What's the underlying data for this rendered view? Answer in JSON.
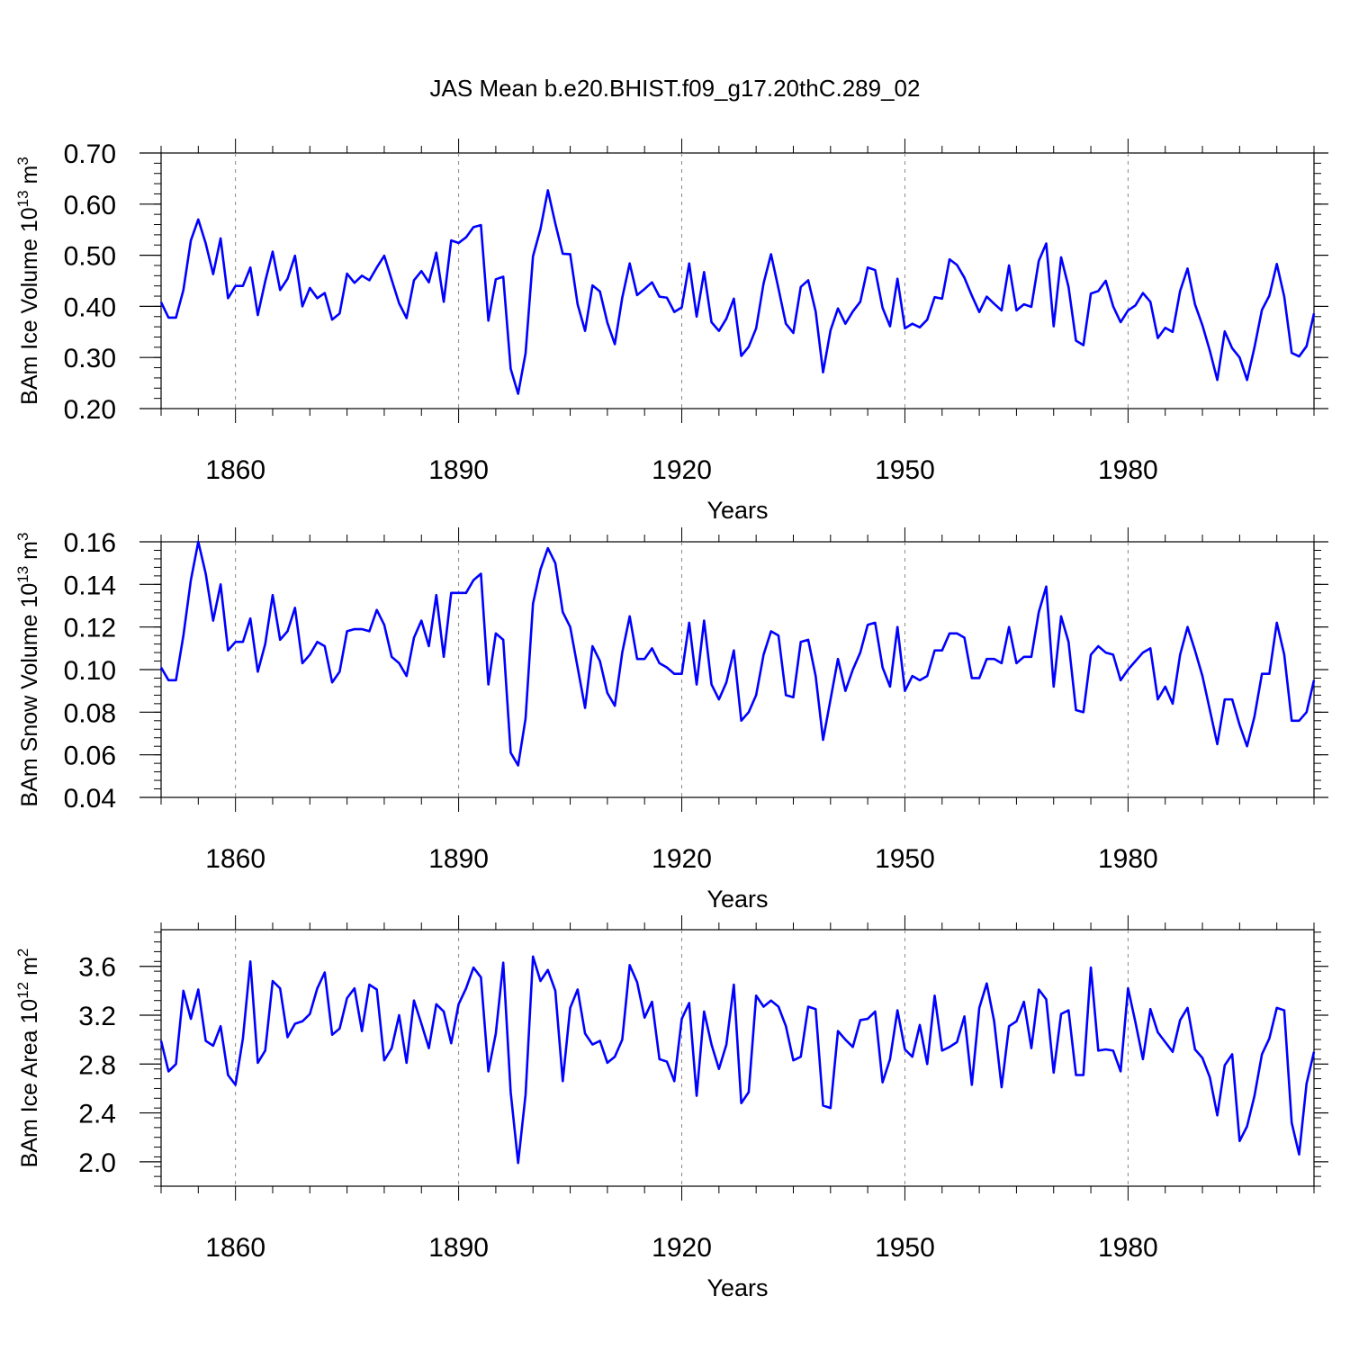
{
  "title": "JAS Mean b.e20.BHIST.f09_g17.20thC.289_02",
  "colors": {
    "line": "#0000ff",
    "axis": "#000000",
    "grid": "#888888"
  },
  "chart_data": [
    {
      "type": "line",
      "title": "",
      "xlabel": "Years",
      "ylabel": {
        "main": "BAm Ice Volume 10",
        "exp": "13",
        "unit": " m",
        "unit_exp": "3"
      },
      "x_start": 1850,
      "xlim": [
        1850,
        2005
      ],
      "ylim": [
        0.2,
        0.7
      ],
      "x_ticks": [
        "1860",
        "1890",
        "1920",
        "1950",
        "1980"
      ],
      "y_ticks": [
        "0.20",
        "0.30",
        "0.40",
        "0.50",
        "0.60",
        "0.70"
      ],
      "series": [
        {
          "name": "BAm Ice Volume",
          "values": [
            0.408,
            0.378,
            0.378,
            0.432,
            0.529,
            0.57,
            0.523,
            0.463,
            0.533,
            0.416,
            0.44,
            0.44,
            0.476,
            0.383,
            0.449,
            0.507,
            0.432,
            0.454,
            0.499,
            0.4,
            0.436,
            0.416,
            0.426,
            0.374,
            0.386,
            0.464,
            0.446,
            0.46,
            0.451,
            0.476,
            0.499,
            0.452,
            0.406,
            0.377,
            0.451,
            0.469,
            0.447,
            0.505,
            0.409,
            0.529,
            0.524,
            0.535,
            0.555,
            0.559,
            0.372,
            0.453,
            0.458,
            0.278,
            0.229,
            0.308,
            0.498,
            0.551,
            0.627,
            0.562,
            0.503,
            0.502,
            0.404,
            0.352,
            0.441,
            0.429,
            0.368,
            0.326,
            0.417,
            0.484,
            0.422,
            0.434,
            0.447,
            0.419,
            0.417,
            0.389,
            0.398,
            0.484,
            0.38,
            0.467,
            0.369,
            0.352,
            0.376,
            0.415,
            0.303,
            0.321,
            0.357,
            0.445,
            0.502,
            0.435,
            0.366,
            0.348,
            0.438,
            0.451,
            0.39,
            0.271,
            0.353,
            0.396,
            0.366,
            0.39,
            0.409,
            0.476,
            0.471,
            0.397,
            0.361,
            0.454,
            0.357,
            0.366,
            0.359,
            0.374,
            0.418,
            0.415,
            0.492,
            0.481,
            0.456,
            0.421,
            0.389,
            0.419,
            0.405,
            0.392,
            0.48,
            0.392,
            0.404,
            0.399,
            0.489,
            0.523,
            0.361,
            0.496,
            0.438,
            0.333,
            0.324,
            0.425,
            0.43,
            0.45,
            0.4,
            0.369,
            0.392,
            0.402,
            0.426,
            0.409,
            0.338,
            0.358,
            0.35,
            0.43,
            0.474,
            0.404,
            0.363,
            0.313,
            0.256,
            0.351,
            0.318,
            0.3,
            0.256,
            0.32,
            0.393,
            0.421,
            0.483,
            0.419,
            0.309,
            0.302,
            0.322,
            0.386
          ]
        }
      ]
    },
    {
      "type": "line",
      "title": "",
      "xlabel": "Years",
      "ylabel": {
        "main": "BAm Snow Volume 10",
        "exp": "13",
        "unit": " m",
        "unit_exp": "3"
      },
      "x_start": 1850,
      "xlim": [
        1850,
        2005
      ],
      "ylim": [
        0.04,
        0.16
      ],
      "x_ticks": [
        "1860",
        "1890",
        "1920",
        "1950",
        "1980"
      ],
      "y_ticks": [
        "0.04",
        "0.06",
        "0.08",
        "0.10",
        "0.12",
        "0.14",
        "0.16"
      ],
      "series": [
        {
          "name": "BAm Snow Volume",
          "values": [
            0.101,
            0.095,
            0.095,
            0.116,
            0.142,
            0.16,
            0.145,
            0.123,
            0.14,
            0.109,
            0.113,
            0.113,
            0.124,
            0.099,
            0.112,
            0.135,
            0.114,
            0.118,
            0.129,
            0.103,
            0.107,
            0.113,
            0.111,
            0.094,
            0.099,
            0.118,
            0.119,
            0.119,
            0.118,
            0.128,
            0.121,
            0.106,
            0.103,
            0.097,
            0.115,
            0.123,
            0.111,
            0.135,
            0.106,
            0.136,
            0.136,
            0.136,
            0.142,
            0.145,
            0.093,
            0.117,
            0.114,
            0.061,
            0.055,
            0.077,
            0.131,
            0.147,
            0.157,
            0.15,
            0.127,
            0.12,
            0.101,
            0.082,
            0.111,
            0.104,
            0.089,
            0.083,
            0.108,
            0.125,
            0.105,
            0.105,
            0.11,
            0.103,
            0.101,
            0.098,
            0.098,
            0.122,
            0.093,
            0.123,
            0.093,
            0.086,
            0.094,
            0.109,
            0.076,
            0.08,
            0.088,
            0.107,
            0.118,
            0.116,
            0.088,
            0.087,
            0.113,
            0.114,
            0.097,
            0.067,
            0.086,
            0.105,
            0.09,
            0.1,
            0.108,
            0.121,
            0.122,
            0.101,
            0.092,
            0.12,
            0.09,
            0.097,
            0.095,
            0.097,
            0.109,
            0.109,
            0.117,
            0.117,
            0.115,
            0.096,
            0.096,
            0.105,
            0.105,
            0.103,
            0.12,
            0.103,
            0.106,
            0.106,
            0.127,
            0.139,
            0.092,
            0.125,
            0.113,
            0.081,
            0.08,
            0.107,
            0.111,
            0.108,
            0.107,
            0.095,
            0.1,
            0.104,
            0.108,
            0.11,
            0.086,
            0.092,
            0.084,
            0.107,
            0.12,
            0.109,
            0.097,
            0.081,
            0.065,
            0.086,
            0.086,
            0.074,
            0.064,
            0.078,
            0.098,
            0.098,
            0.122,
            0.107,
            0.076,
            0.076,
            0.08,
            0.095
          ]
        }
      ]
    },
    {
      "type": "line",
      "title": "",
      "xlabel": "Years",
      "ylabel": {
        "main": "BAm Ice Area 10",
        "exp": "12",
        "unit": " m",
        "unit_exp": "2"
      },
      "x_start": 1850,
      "xlim": [
        1850,
        2005
      ],
      "ylim": [
        1.8,
        3.9
      ],
      "x_ticks": [
        "1860",
        "1890",
        "1920",
        "1950",
        "1980"
      ],
      "y_ticks": [
        "2.0",
        "2.4",
        "2.8",
        "3.2",
        "3.6"
      ],
      "series": [
        {
          "name": "BAm Ice Area",
          "values": [
            2.99,
            2.74,
            2.8,
            3.4,
            3.17,
            3.41,
            2.99,
            2.95,
            3.11,
            2.71,
            2.63,
            3.01,
            3.64,
            2.81,
            2.91,
            3.48,
            3.42,
            3.02,
            3.13,
            3.15,
            3.21,
            3.42,
            3.55,
            3.04,
            3.09,
            3.34,
            3.42,
            3.07,
            3.45,
            3.41,
            2.83,
            2.93,
            3.2,
            2.81,
            3.32,
            3.13,
            2.93,
            3.29,
            3.23,
            2.97,
            3.29,
            3.42,
            3.59,
            3.51,
            2.74,
            3.05,
            3.63,
            2.57,
            1.99,
            2.55,
            3.68,
            3.48,
            3.57,
            3.4,
            2.66,
            3.26,
            3.41,
            3.05,
            2.96,
            2.99,
            2.81,
            2.86,
            3.0,
            3.61,
            3.47,
            3.18,
            3.31,
            2.84,
            2.82,
            2.66,
            3.17,
            3.3,
            2.54,
            3.23,
            2.96,
            2.76,
            2.96,
            3.45,
            2.48,
            2.57,
            3.36,
            3.27,
            3.32,
            3.27,
            3.11,
            2.83,
            2.86,
            3.27,
            3.25,
            2.46,
            2.44,
            3.07,
            3.0,
            2.94,
            3.16,
            3.17,
            3.23,
            2.65,
            2.84,
            3.24,
            2.92,
            2.86,
            3.12,
            2.8,
            3.36,
            2.91,
            2.94,
            2.98,
            3.19,
            2.63,
            3.26,
            3.46,
            3.15,
            2.61,
            3.11,
            3.15,
            3.31,
            2.93,
            3.41,
            3.33,
            2.73,
            3.21,
            3.24,
            2.71,
            2.71,
            3.59,
            2.91,
            2.92,
            2.91,
            2.74,
            3.42,
            3.14,
            2.84,
            3.25,
            3.06,
            2.98,
            2.9,
            3.16,
            3.26,
            2.92,
            2.85,
            2.69,
            2.38,
            2.79,
            2.88,
            2.17,
            2.29,
            2.54,
            2.88,
            3.01,
            3.26,
            3.24,
            2.32,
            2.06,
            2.64,
            2.9
          ]
        }
      ]
    }
  ]
}
